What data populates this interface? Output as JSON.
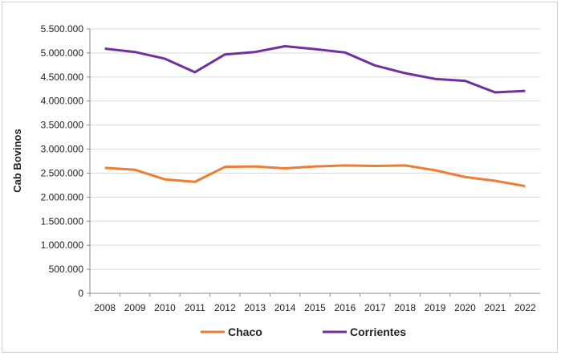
{
  "chart_data": {
    "type": "line",
    "title": "",
    "xlabel": "",
    "ylabel": "Cab Bovinos",
    "categories": [
      "2008",
      "2009",
      "2010",
      "2011",
      "2012",
      "2013",
      "2014",
      "2015",
      "2016",
      "2017",
      "2018",
      "2019",
      "2020",
      "2021",
      "2022"
    ],
    "ylim": [
      0,
      5500000
    ],
    "yticks": [
      0,
      500000,
      1000000,
      1500000,
      2000000,
      2500000,
      3000000,
      3500000,
      4000000,
      4500000,
      5000000,
      5500000
    ],
    "ytick_labels": [
      "0",
      "500.000",
      "1.000.000",
      "1.500.000",
      "2.000.000",
      "2.500.000",
      "3.000.000",
      "3.500.000",
      "4.000.000",
      "4.500.000",
      "5.000.000",
      "5.500.000"
    ],
    "grid": true,
    "legend": "bottom",
    "series": [
      {
        "name": "Chaco",
        "color": "#ED7D31",
        "values": [
          2610000,
          2570000,
          2370000,
          2320000,
          2630000,
          2640000,
          2600000,
          2640000,
          2660000,
          2650000,
          2660000,
          2560000,
          2420000,
          2340000,
          2230000
        ]
      },
      {
        "name": "Corrientes",
        "color": "#7030A0",
        "values": [
          5090000,
          5020000,
          4880000,
          4600000,
          4970000,
          5020000,
          5140000,
          5080000,
          5010000,
          4740000,
          4580000,
          4460000,
          4420000,
          4180000,
          4210000
        ]
      }
    ]
  }
}
